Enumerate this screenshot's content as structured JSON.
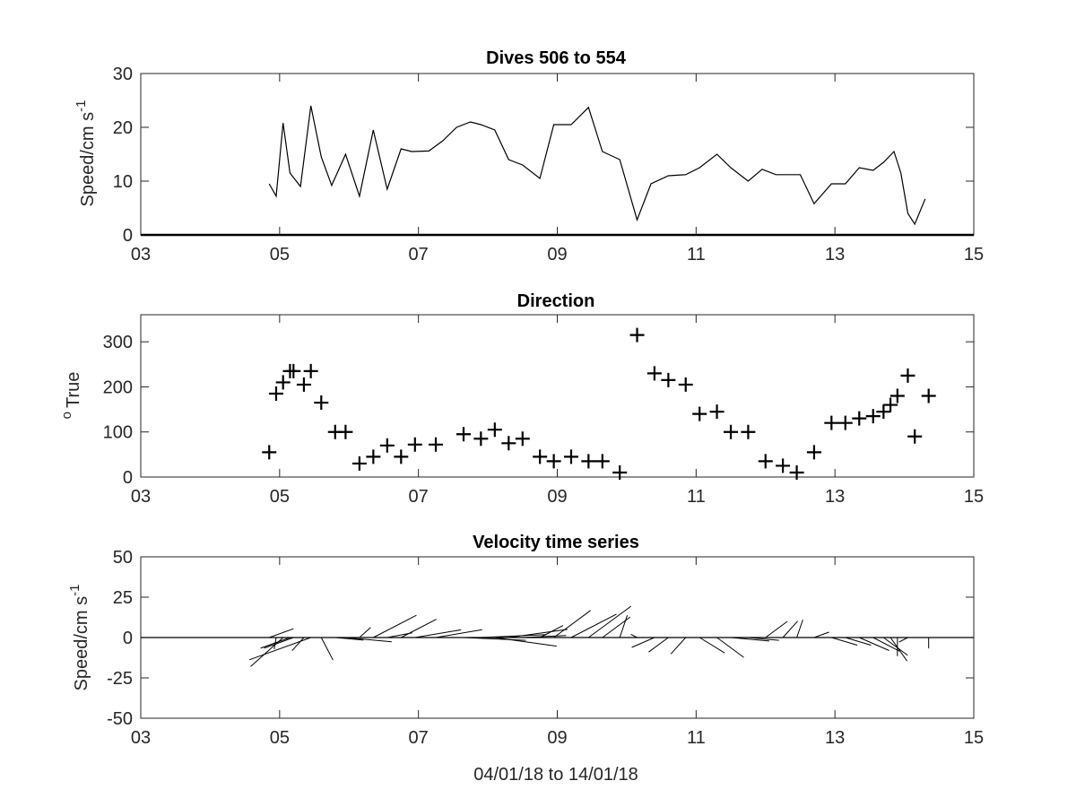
{
  "chart_data": [
    {
      "type": "line",
      "title": "Dives 506 to 554",
      "ylabel_main": "Speed/cm s",
      "ylabel_sup": "-1",
      "xlabel": "",
      "xlim": [
        3,
        15
      ],
      "ylim": [
        0,
        30
      ],
      "xtick_values": [
        3,
        5,
        7,
        9,
        11,
        13,
        15
      ],
      "xtick_labels": [
        "03",
        "05",
        "07",
        "09",
        "11",
        "13",
        "15"
      ],
      "ytick_values": [
        0,
        10,
        20,
        30
      ],
      "ytick_labels": [
        "0",
        "10",
        "20",
        "30"
      ],
      "grid": false,
      "series": [
        {
          "x": [
            4.85,
            4.95,
            5.05,
            5.15,
            5.3,
            5.45,
            5.6,
            5.75,
            5.95,
            6.15,
            6.35,
            6.55,
            6.75,
            6.9,
            7.15,
            7.35,
            7.55,
            7.75,
            7.9,
            8.1,
            8.3,
            8.5,
            8.75,
            8.95,
            9.05,
            9.2,
            9.45,
            9.65,
            9.9,
            10.15,
            10.35,
            10.6,
            10.85,
            11.05,
            11.3,
            11.5,
            11.75,
            11.95,
            12.15,
            12.35,
            12.5,
            12.7,
            12.95,
            13.15,
            13.35,
            13.55,
            13.7,
            13.85,
            13.95,
            14.05,
            14.15,
            14.3
          ],
          "y": [
            9.5,
            7.2,
            20.8,
            11.5,
            9,
            24,
            14.5,
            9.2,
            15,
            7.2,
            19.5,
            8.5,
            16,
            15.5,
            15.6,
            17.5,
            20,
            21,
            20.5,
            19.5,
            14,
            13,
            10.5,
            20.5,
            20.5,
            20.5,
            23.7,
            15.5,
            14,
            2.8,
            9.5,
            11,
            11.2,
            12.5,
            15,
            12.5,
            10,
            12.2,
            11.2,
            11.2,
            11.2,
            5.8,
            9.5,
            9.5,
            12.5,
            12,
            13.5,
            15.5,
            11.5,
            4,
            2,
            6.7
          ]
        }
      ]
    },
    {
      "type": "scatter",
      "title": "Direction",
      "ylabel_main": "True",
      "ylabel_sup": "o",
      "xlabel": "",
      "xlim": [
        3,
        15
      ],
      "ylim": [
        0,
        360
      ],
      "xtick_values": [
        3,
        5,
        7,
        9,
        11,
        13,
        15
      ],
      "xtick_labels": [
        "03",
        "05",
        "07",
        "09",
        "11",
        "13",
        "15"
      ],
      "ytick_values": [
        0,
        100,
        200,
        300
      ],
      "ytick_labels": [
        "0",
        "100",
        "200",
        "300"
      ],
      "grid": false,
      "marker": "+",
      "series": [
        {
          "x": [
            4.85,
            4.95,
            5.05,
            5.15,
            5.2,
            5.35,
            5.45,
            5.6,
            5.8,
            5.95,
            6.15,
            6.35,
            6.55,
            6.75,
            6.95,
            7.25,
            7.65,
            7.9,
            8.1,
            8.3,
            8.5,
            8.75,
            8.95,
            9.2,
            9.45,
            9.65,
            9.9,
            10.15,
            10.4,
            10.6,
            10.85,
            11.05,
            11.3,
            11.5,
            11.75,
            12.0,
            12.25,
            12.45,
            12.7,
            12.95,
            13.15,
            13.35,
            13.55,
            13.7,
            13.8,
            13.9,
            14.05,
            14.15,
            14.35
          ],
          "y": [
            55,
            185,
            210,
            235,
            235,
            205,
            235,
            165,
            100,
            100,
            30,
            45,
            70,
            45,
            72,
            72,
            95,
            85,
            105,
            75,
            85,
            45,
            35,
            45,
            35,
            35,
            10,
            315,
            230,
            215,
            205,
            140,
            145,
            100,
            100,
            35,
            25,
            10,
            55,
            120,
            120,
            130,
            135,
            145,
            160,
            180,
            225,
            90,
            180
          ]
        }
      ]
    },
    {
      "type": "quiver",
      "title": "Velocity time series",
      "ylabel_main": "Speed/cm s",
      "ylabel_sup": "-1",
      "xlabel": "04/01/18 to 14/01/18",
      "xlim": [
        3,
        15
      ],
      "ylim": [
        -50,
        50
      ],
      "xtick_values": [
        3,
        5,
        7,
        9,
        11,
        13,
        15
      ],
      "xtick_labels": [
        "03",
        "05",
        "07",
        "09",
        "11",
        "13",
        "15"
      ],
      "ytick_values": [
        -50,
        -25,
        0,
        25,
        50
      ],
      "ytick_labels": [
        "-50",
        "-25",
        "0",
        "25",
        "50"
      ],
      "grid": false,
      "series": [
        {
          "x": [
            4.85,
            4.95,
            5.05,
            5.15,
            5.2,
            5.35,
            5.45,
            5.6,
            5.8,
            5.95,
            6.15,
            6.35,
            6.55,
            6.75,
            6.95,
            7.25,
            7.65,
            7.9,
            8.1,
            8.3,
            8.5,
            8.75,
            8.95,
            9.2,
            9.45,
            9.65,
            9.9,
            10.15,
            10.4,
            10.6,
            10.85,
            11.05,
            11.3,
            11.5,
            11.75,
            12.0,
            12.25,
            12.45,
            12.7,
            12.95,
            13.15,
            13.35,
            13.55,
            13.7,
            13.8,
            13.9,
            14.05,
            14.15,
            14.35
          ],
          "speed": [
            9.5,
            7.2,
            20.8,
            11.5,
            11.5,
            9,
            24,
            14.5,
            9.2,
            15,
            7.2,
            19.5,
            8.5,
            16,
            15.5,
            15.6,
            20,
            21,
            20.5,
            19.5,
            14,
            10.5,
            20.5,
            20.5,
            23.7,
            15.5,
            14,
            2.8,
            9.5,
            11,
            11.2,
            12.5,
            15,
            12.5,
            10,
            12.2,
            11.2,
            11.2,
            5.8,
            9.5,
            9.5,
            12.5,
            12,
            13.5,
            15.5,
            11.5,
            4,
            2,
            6.7
          ],
          "direction_deg_true": [
            55,
            185,
            210,
            235,
            235,
            205,
            235,
            165,
            100,
            100,
            30,
            45,
            70,
            45,
            72,
            72,
            95,
            85,
            105,
            75,
            85,
            45,
            35,
            45,
            35,
            35,
            10,
            315,
            230,
            215,
            205,
            140,
            145,
            100,
            100,
            35,
            25,
            10,
            55,
            120,
            120,
            130,
            135,
            145,
            160,
            180,
            225,
            90,
            180
          ]
        }
      ]
    }
  ]
}
